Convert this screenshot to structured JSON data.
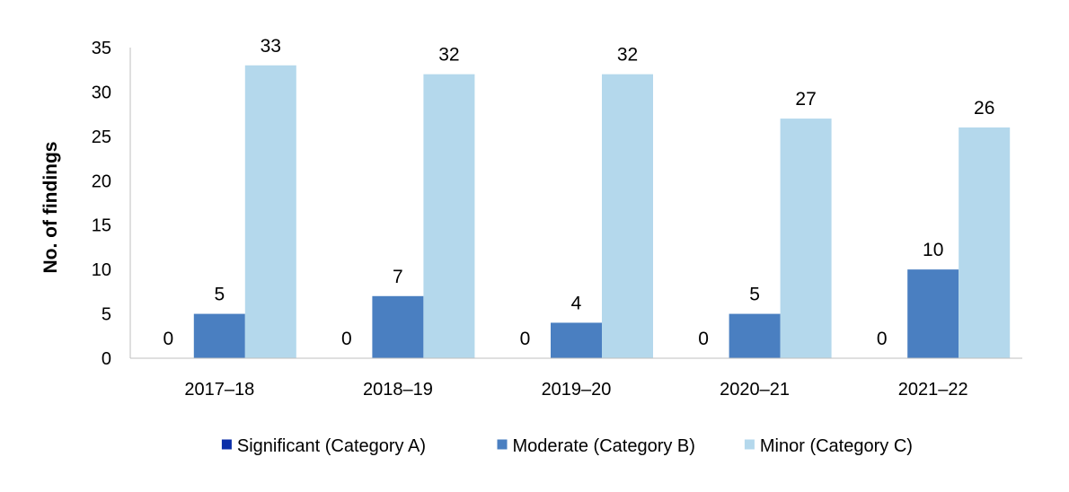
{
  "chart_data": {
    "type": "bar",
    "title": "",
    "xlabel": "",
    "ylabel": "No. of findings",
    "ylim": [
      0,
      35
    ],
    "yticks": [
      0,
      5,
      10,
      15,
      20,
      25,
      30,
      35
    ],
    "grid": false,
    "legend_position": "bottom",
    "categories": [
      "2017–18",
      "2018–19",
      "2019–20",
      "2020–21",
      "2021–22"
    ],
    "series": [
      {
        "name": "Significant (Category A)",
        "color": "#0b2ea8",
        "values": [
          0,
          0,
          0,
          0,
          0
        ]
      },
      {
        "name": "Moderate (Category B)",
        "color": "#4a7fc1",
        "values": [
          5,
          7,
          4,
          5,
          10
        ]
      },
      {
        "name": "Minor (Category C)",
        "color": "#b4d8ec",
        "values": [
          33,
          32,
          32,
          27,
          26
        ]
      }
    ]
  }
}
